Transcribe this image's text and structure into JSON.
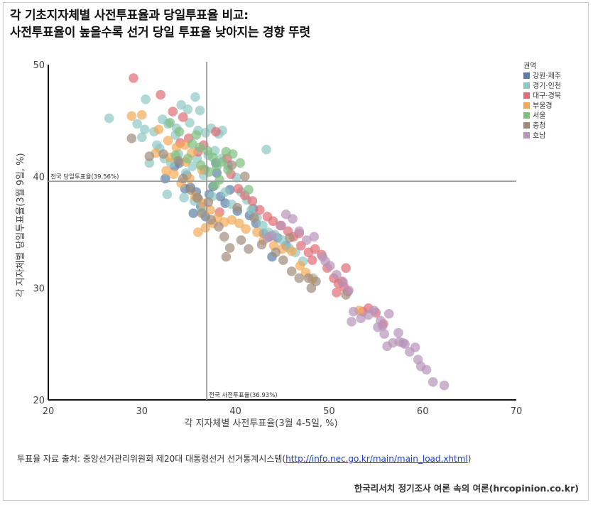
{
  "title": {
    "line1": "각 기초지자체별 사전투표율과 당일투표율 비교:",
    "line2": "사전투표율이 높을수록 선거 당일 투표율 낮아지는 경향 뚜렷"
  },
  "source": {
    "prefix": "투표율 자료 출처: 중앙선거관리위원회 제20대 대통령선거 선거통계시스템(",
    "link": "http://info.nec.go.kr/main/main_load.xhtml",
    "suffix": ")"
  },
  "brand": "한국리서치 정기조사 여론 속의 여론(hrcopinion.co.kr)",
  "chart_data": {
    "type": "scatter",
    "xlabel": "각 지자체별 사전투표율(3월 4-5일, %)",
    "ylabel": "각 지자체별 당일투표율(3월 9일, %)",
    "xlim": [
      20,
      70
    ],
    "ylim": [
      20,
      50
    ],
    "xticks": [
      "20",
      "30",
      "40",
      "50",
      "60",
      "70"
    ],
    "yticks": [
      "20",
      "30",
      "40",
      "50"
    ],
    "grid": false,
    "legend_title": "권역",
    "legend_position": "top-right",
    "reference_lines": [
      {
        "axis": "y",
        "value": 39.56,
        "label": "전국 당일투표율(39.56%)"
      },
      {
        "axis": "x",
        "value": 36.93,
        "label": "전국 사전투표율(36.93%)"
      }
    ],
    "series": [
      {
        "name": "강원·제주",
        "color": "#5b7fa6",
        "points": [
          [
            32.5,
            39.8
          ],
          [
            33.5,
            40.9
          ],
          [
            34.0,
            41.2
          ],
          [
            34.8,
            40.1
          ],
          [
            35.2,
            39.0
          ],
          [
            35.8,
            38.6
          ],
          [
            36.0,
            38.0
          ],
          [
            36.3,
            37.3
          ],
          [
            36.8,
            36.4
          ],
          [
            37.2,
            38.4
          ],
          [
            37.6,
            39.1
          ],
          [
            38.0,
            40.3
          ],
          [
            38.4,
            38.2
          ],
          [
            38.9,
            37.6
          ],
          [
            35.5,
            36.7
          ],
          [
            34.6,
            38.9
          ],
          [
            40.2,
            36.9
          ],
          [
            41.5,
            36.5
          ],
          [
            42.2,
            35.8
          ],
          [
            43.0,
            34.9
          ],
          [
            43.6,
            34.6
          ],
          [
            44.5,
            34.5
          ],
          [
            45.4,
            33.8
          ],
          [
            43.9,
            32.8
          ],
          [
            41.9,
            37.1
          ],
          [
            36.7,
            40.6
          ],
          [
            37.9,
            41.2
          ],
          [
            39.4,
            38.8
          ]
        ]
      },
      {
        "name": "경기·인천",
        "color": "#8ec7c3",
        "points": [
          [
            26.5,
            45.2
          ],
          [
            29.5,
            44.7
          ],
          [
            30.3,
            44.2
          ],
          [
            31.3,
            44.0
          ],
          [
            32.2,
            45.1
          ],
          [
            32.8,
            44.7
          ],
          [
            33.7,
            44.3
          ],
          [
            34.2,
            46.4
          ],
          [
            34.9,
            46.0
          ],
          [
            35.7,
            47.1
          ],
          [
            36.2,
            45.9
          ],
          [
            36.8,
            43.9
          ],
          [
            37.4,
            44.3
          ],
          [
            38.2,
            43.8
          ],
          [
            38.6,
            44.1
          ],
          [
            30.4,
            46.9
          ],
          [
            31.9,
            42.5
          ],
          [
            32.4,
            41.6
          ],
          [
            33.1,
            41.2
          ],
          [
            33.9,
            42.0
          ],
          [
            34.7,
            40.3
          ],
          [
            35.4,
            40.9
          ],
          [
            35.9,
            41.6
          ],
          [
            36.6,
            40.1
          ],
          [
            37.1,
            41.9
          ],
          [
            37.8,
            42.3
          ],
          [
            38.5,
            41.6
          ],
          [
            39.2,
            41.0
          ],
          [
            40.1,
            39.9
          ],
          [
            40.6,
            38.6
          ],
          [
            41.2,
            37.9
          ],
          [
            41.7,
            37.0
          ],
          [
            42.3,
            36.3
          ],
          [
            42.9,
            35.6
          ],
          [
            43.5,
            35.0
          ],
          [
            44.2,
            34.8
          ],
          [
            45.0,
            34.3
          ],
          [
            45.7,
            33.6
          ],
          [
            46.4,
            33.2
          ],
          [
            47.2,
            32.4
          ],
          [
            48.3,
            30.9
          ],
          [
            32.7,
            38.4
          ],
          [
            34.5,
            38.1
          ],
          [
            35.6,
            37.8
          ],
          [
            36.4,
            36.9
          ],
          [
            37.5,
            38.2
          ],
          [
            38.9,
            38.6
          ],
          [
            39.6,
            37.5
          ],
          [
            43.3,
            42.4
          ],
          [
            36.0,
            44.1
          ],
          [
            30.8,
            41.2
          ],
          [
            33.6,
            43.7
          ],
          [
            35.1,
            44.8
          ],
          [
            30.0,
            43.5
          ],
          [
            31.6,
            42.8
          ]
        ]
      },
      {
        "name": "대구·경북",
        "color": "#e06c75",
        "points": [
          [
            29.1,
            48.8
          ],
          [
            32.0,
            47.3
          ],
          [
            33.3,
            45.8
          ],
          [
            34.4,
            45.3
          ],
          [
            35.0,
            43.4
          ],
          [
            36.6,
            42.8
          ],
          [
            37.9,
            44.0
          ],
          [
            34.1,
            43.0
          ],
          [
            39.1,
            41.6
          ],
          [
            39.5,
            40.2
          ],
          [
            40.3,
            38.9
          ],
          [
            41.0,
            38.3
          ],
          [
            41.8,
            37.8
          ],
          [
            42.6,
            37.0
          ],
          [
            43.4,
            36.4
          ],
          [
            44.0,
            36.0
          ],
          [
            44.8,
            35.6
          ],
          [
            45.6,
            35.1
          ],
          [
            46.2,
            34.6
          ],
          [
            47.0,
            33.8
          ],
          [
            47.8,
            33.2
          ],
          [
            48.5,
            33.5
          ],
          [
            49.2,
            33.0
          ],
          [
            48.2,
            32.5
          ],
          [
            49.8,
            31.8
          ],
          [
            50.5,
            30.9
          ],
          [
            51.0,
            30.4
          ],
          [
            51.6,
            30.1
          ],
          [
            52.0,
            29.7
          ],
          [
            50.8,
            29.6
          ],
          [
            51.4,
            30.6
          ],
          [
            51.8,
            31.8
          ],
          [
            53.6,
            27.9
          ],
          [
            54.2,
            28.2
          ],
          [
            55.0,
            27.8
          ],
          [
            55.8,
            26.8
          ],
          [
            46.8,
            34.9
          ],
          [
            38.3,
            36.8
          ],
          [
            36.0,
            42.2
          ]
        ]
      },
      {
        "name": "부울경",
        "color": "#f2a957",
        "points": [
          [
            28.9,
            45.4
          ],
          [
            30.0,
            45.5
          ],
          [
            31.8,
            44.2
          ],
          [
            32.8,
            43.2
          ],
          [
            33.7,
            42.6
          ],
          [
            34.6,
            42.8
          ],
          [
            35.3,
            42.1
          ],
          [
            32.6,
            40.5
          ],
          [
            33.4,
            40.2
          ],
          [
            34.2,
            39.4
          ],
          [
            35.1,
            39.8
          ],
          [
            35.7,
            38.2
          ],
          [
            36.5,
            37.6
          ],
          [
            37.3,
            37.0
          ],
          [
            38.1,
            36.3
          ],
          [
            38.8,
            35.9
          ],
          [
            36.0,
            35.0
          ],
          [
            36.8,
            35.4
          ],
          [
            37.6,
            35.8
          ],
          [
            39.6,
            36.1
          ],
          [
            40.4,
            35.8
          ],
          [
            41.1,
            35.3
          ],
          [
            42.3,
            35.0
          ],
          [
            43.0,
            34.3
          ],
          [
            44.1,
            33.8
          ],
          [
            45.0,
            33.5
          ],
          [
            46.0,
            33.3
          ],
          [
            46.9,
            32.0
          ],
          [
            47.5,
            31.4
          ],
          [
            48.2,
            30.8
          ],
          [
            53.2,
            28.0
          ],
          [
            34.7,
            41.3
          ],
          [
            36.4,
            40.6
          ],
          [
            31.5,
            42.1
          ],
          [
            33.0,
            41.7
          ]
        ]
      },
      {
        "name": "서울",
        "color": "#7fbf7f",
        "points": [
          [
            33.0,
            44.8
          ],
          [
            34.0,
            44.0
          ],
          [
            35.8,
            43.7
          ],
          [
            36.2,
            42.6
          ],
          [
            37.0,
            42.3
          ],
          [
            37.6,
            41.7
          ],
          [
            38.0,
            40.9
          ],
          [
            38.6,
            41.3
          ],
          [
            39.2,
            40.6
          ],
          [
            39.7,
            42.0
          ],
          [
            40.5,
            41.2
          ],
          [
            36.3,
            41.0
          ],
          [
            37.2,
            40.4
          ],
          [
            38.3,
            39.7
          ],
          [
            35.4,
            42.9
          ],
          [
            39.0,
            42.2
          ],
          [
            41.4,
            38.8
          ],
          [
            33.6,
            41.9
          ],
          [
            34.9,
            41.6
          ],
          [
            37.8,
            39.2
          ]
        ]
      },
      {
        "name": "충청",
        "color": "#a08b7a",
        "points": [
          [
            28.9,
            43.4
          ],
          [
            30.8,
            41.8
          ],
          [
            32.3,
            42.0
          ],
          [
            33.9,
            41.4
          ],
          [
            34.4,
            39.8
          ],
          [
            35.2,
            38.8
          ],
          [
            35.9,
            38.1
          ],
          [
            36.4,
            36.7
          ],
          [
            37.4,
            36.1
          ],
          [
            38.2,
            35.5
          ],
          [
            38.8,
            34.6
          ],
          [
            39.4,
            33.6
          ],
          [
            39.0,
            32.8
          ],
          [
            40.6,
            34.3
          ],
          [
            41.4,
            33.5
          ],
          [
            42.8,
            33.9
          ],
          [
            44.3,
            33.2
          ],
          [
            45.1,
            32.5
          ],
          [
            46.0,
            31.5
          ],
          [
            46.8,
            30.9
          ],
          [
            47.8,
            30.9
          ],
          [
            48.6,
            30.6
          ],
          [
            48.1,
            30.0
          ],
          [
            51.8,
            29.4
          ],
          [
            39.6,
            41.0
          ],
          [
            37.1,
            37.7
          ],
          [
            40.2,
            37.2
          ],
          [
            42.0,
            36.3
          ],
          [
            45.8,
            34.5
          ],
          [
            41.0,
            40.0
          ]
        ]
      },
      {
        "name": "호남",
        "color": "#b794b9",
        "points": [
          [
            43.9,
            34.7
          ],
          [
            45.4,
            36.6
          ],
          [
            46.8,
            35.1
          ],
          [
            47.6,
            34.3
          ],
          [
            48.4,
            34.6
          ],
          [
            49.3,
            32.8
          ],
          [
            50.1,
            32.0
          ],
          [
            50.8,
            31.2
          ],
          [
            51.5,
            30.5
          ],
          [
            52.1,
            29.8
          ],
          [
            52.6,
            27.9
          ],
          [
            53.4,
            27.3
          ],
          [
            54.2,
            27.6
          ],
          [
            54.8,
            28.0
          ],
          [
            55.5,
            27.1
          ],
          [
            55.2,
            26.5
          ],
          [
            55.9,
            25.9
          ],
          [
            56.4,
            27.7
          ],
          [
            56.8,
            25.1
          ],
          [
            57.5,
            25.2
          ],
          [
            57.4,
            26.0
          ],
          [
            58.1,
            25.0
          ],
          [
            58.6,
            24.3
          ],
          [
            59.2,
            24.7
          ],
          [
            59.5,
            23.6
          ],
          [
            59.8,
            23.0
          ],
          [
            60.4,
            22.7
          ],
          [
            61.1,
            21.6
          ],
          [
            62.3,
            21.3
          ],
          [
            52.4,
            27.0
          ],
          [
            55.7,
            26.6
          ],
          [
            49.6,
            32.4
          ],
          [
            44.9,
            35.6
          ],
          [
            46.1,
            36.2
          ],
          [
            56.2,
            24.8
          ],
          [
            57.9,
            25.1
          ],
          [
            43.4,
            34.5
          ]
        ]
      }
    ]
  }
}
